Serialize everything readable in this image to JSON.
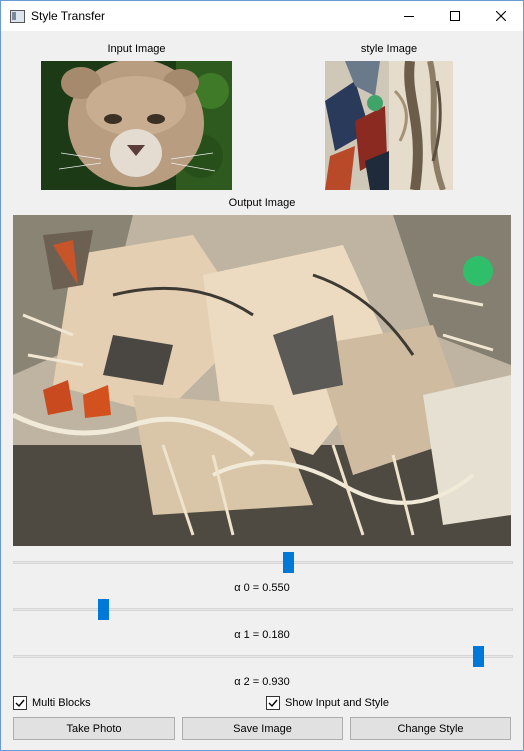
{
  "window": {
    "title": "Style Transfer"
  },
  "labels": {
    "input": "Input Image",
    "style": "style Image",
    "output": "Output Image"
  },
  "sliders": [
    {
      "name": "alpha-0",
      "label": "α 0 = 0.550",
      "value": 0.55
    },
    {
      "name": "alpha-1",
      "label": "α 1 = 0.180",
      "value": 0.18
    },
    {
      "name": "alpha-2",
      "label": "α 2 = 0.930",
      "value": 0.93
    }
  ],
  "checkboxes": {
    "multi_blocks": {
      "label": "Multi Blocks",
      "checked": true
    },
    "show_input_style": {
      "label": "Show Input and Style",
      "checked": true
    }
  },
  "buttons": {
    "take_photo": "Take Photo",
    "save_image": "Save Image",
    "change_style": "Change Style"
  },
  "colors": {
    "accent": "#0078d7",
    "window_border": "#6b9bd1"
  }
}
